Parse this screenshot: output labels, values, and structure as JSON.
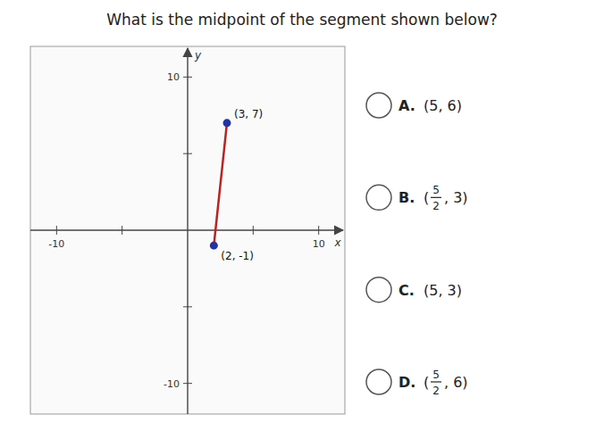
{
  "chart_data": {
    "type": "line",
    "title": "What is the midpoint of the segment shown below?",
    "x_label": "x",
    "y_label": "y",
    "xlim": [
      -12,
      12
    ],
    "ylim": [
      -12,
      12
    ],
    "xticks": [
      -10,
      {
        "value": -5,
        "label": null
      },
      {
        "value": 5,
        "label": null
      },
      10
    ],
    "yticks": [
      -10,
      {
        "value": -5,
        "label": null
      },
      {
        "value": 5,
        "label": null
      },
      10
    ],
    "grid": false,
    "x": [
      3,
      2
    ],
    "series": [
      {
        "type": "line",
        "color": "#bb2222",
        "values": [
          7,
          -1
        ]
      },
      {
        "type": "scatter",
        "color": "#2233aa",
        "marker": "circle",
        "values": [
          7,
          -1
        ]
      }
    ],
    "annotations": [
      {
        "text": "(3, 7)",
        "x": 3,
        "y": 7
      },
      {
        "text": "(2, -1)",
        "x": 2,
        "y": -1
      }
    ],
    "choices": [
      {
        "letter": "A.",
        "text": "(5, 6)"
      },
      {
        "letter": "B.",
        "open": "(",
        "numerator": "5",
        "denominator": "2",
        "rest": ", 3)"
      },
      {
        "letter": "C.",
        "text": "(5, 3)"
      },
      {
        "letter": "D.",
        "open": "(",
        "numerator": "5",
        "denominator": "2",
        "rest": ", 6)"
      }
    ]
  }
}
